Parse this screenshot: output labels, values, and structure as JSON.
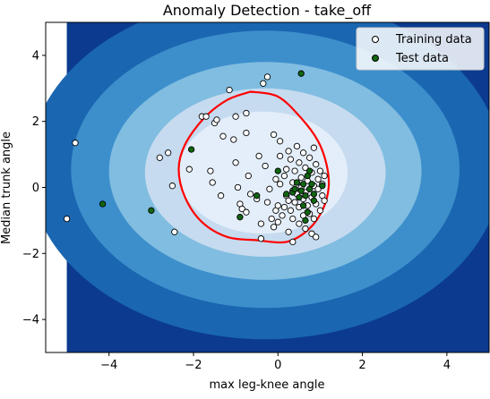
{
  "chart_data": {
    "type": "scatter",
    "title": "Anomaly Detection - take_off",
    "xlabel": "max leg-knee angle",
    "ylabel": "Median trunk angle",
    "xlim": [
      -5.5,
      5
    ],
    "ylim": [
      -5,
      5
    ],
    "xticks": [
      -4,
      -2,
      0,
      2,
      4
    ],
    "yticks": [
      -4,
      -2,
      0,
      2,
      4
    ],
    "tick_labels_x": [
      "−4",
      "−2",
      "0",
      "2",
      "4"
    ],
    "tick_labels_y": [
      "−4",
      "−2",
      "0",
      "2",
      "4"
    ],
    "grid": false,
    "legend": {
      "placement": "top-right",
      "entries": [
        "Training data",
        "Test data"
      ]
    },
    "background": {
      "description_of_fill": "filled contours of anomaly score, darkest blue at outside",
      "colors": [
        "#0b3a8f",
        "#1a66b0",
        "#3d8fcc",
        "#80bde0",
        "#c6dbef",
        "#e3eefa"
      ]
    },
    "decision_boundary": {
      "color": "#ff0000",
      "points": [
        [
          -0.65,
          2.9
        ],
        [
          0.0,
          2.75
        ],
        [
          0.55,
          2.1
        ],
        [
          0.95,
          1.4
        ],
        [
          1.15,
          0.7
        ],
        [
          1.2,
          0.0
        ],
        [
          1.05,
          -0.7
        ],
        [
          0.7,
          -1.3
        ],
        [
          0.2,
          -1.65
        ],
        [
          -0.5,
          -1.6
        ],
        [
          -1.2,
          -1.5
        ],
        [
          -1.8,
          -1.05
        ],
        [
          -2.2,
          -0.3
        ],
        [
          -2.35,
          0.55
        ],
        [
          -2.2,
          1.3
        ],
        [
          -1.75,
          2.1
        ],
        [
          -1.2,
          2.65
        ],
        [
          -0.65,
          2.9
        ]
      ]
    },
    "series": [
      {
        "name": "Training data",
        "marker_fill": "#ffffff",
        "marker_edge": "#000000",
        "points": [
          [
            -5.0,
            -0.95
          ],
          [
            -4.8,
            1.35
          ],
          [
            -2.8,
            0.9
          ],
          [
            -2.6,
            1.05
          ],
          [
            -2.5,
            0.05
          ],
          [
            -2.45,
            -1.35
          ],
          [
            -2.1,
            0.55
          ],
          [
            -1.8,
            2.15
          ],
          [
            -1.7,
            2.15
          ],
          [
            -1.6,
            0.5
          ],
          [
            -1.55,
            0.15
          ],
          [
            -1.5,
            1.95
          ],
          [
            -1.45,
            2.05
          ],
          [
            -1.35,
            -0.25
          ],
          [
            -1.3,
            1.55
          ],
          [
            -1.15,
            2.95
          ],
          [
            -1.05,
            1.45
          ],
          [
            -1.0,
            0.75
          ],
          [
            -1.0,
            2.15
          ],
          [
            -0.95,
            0.0
          ],
          [
            -0.9,
            -0.5
          ],
          [
            -0.85,
            -0.65
          ],
          [
            -0.75,
            2.25
          ],
          [
            -0.75,
            1.65
          ],
          [
            -0.75,
            -0.75
          ],
          [
            -0.7,
            0.35
          ],
          [
            -0.65,
            -0.2
          ],
          [
            -0.5,
            -0.35
          ],
          [
            -0.45,
            0.95
          ],
          [
            -0.4,
            -1.1
          ],
          [
            -0.4,
            -1.55
          ],
          [
            -0.35,
            3.15
          ],
          [
            -0.3,
            0.65
          ],
          [
            -0.25,
            3.35
          ],
          [
            -0.25,
            -0.45
          ],
          [
            -0.2,
            -0.05
          ],
          [
            -0.15,
            -0.95
          ],
          [
            -0.1,
            -1.2
          ],
          [
            -0.1,
            1.6
          ],
          [
            -0.05,
            0.25
          ],
          [
            -0.05,
            -0.7
          ],
          [
            0.0,
            -0.55
          ],
          [
            0.0,
            -1.05
          ],
          [
            0.05,
            1.4
          ],
          [
            0.05,
            0.95
          ],
          [
            0.05,
            0.1
          ],
          [
            0.1,
            -0.85
          ],
          [
            0.15,
            0.35
          ],
          [
            0.15,
            -0.6
          ],
          [
            0.2,
            0.55
          ],
          [
            0.2,
            -0.25
          ],
          [
            0.25,
            1.1
          ],
          [
            0.25,
            -0.4
          ],
          [
            0.25,
            -1.35
          ],
          [
            0.3,
            0.85
          ],
          [
            0.3,
            -0.7
          ],
          [
            0.35,
            0.15
          ],
          [
            0.35,
            -0.1
          ],
          [
            0.35,
            -0.95
          ],
          [
            0.35,
            -1.65
          ],
          [
            0.4,
            0.5
          ],
          [
            0.4,
            -0.45
          ],
          [
            0.45,
            1.25
          ],
          [
            0.45,
            -0.2
          ],
          [
            0.5,
            0.75
          ],
          [
            0.5,
            -0.6
          ],
          [
            0.5,
            -1.1
          ],
          [
            0.55,
            0.0
          ],
          [
            0.55,
            0.3
          ],
          [
            0.6,
            1.05
          ],
          [
            0.6,
            -0.35
          ],
          [
            0.6,
            -0.85
          ],
          [
            0.65,
            0.6
          ],
          [
            0.65,
            -0.15
          ],
          [
            0.65,
            -1.25
          ],
          [
            0.7,
            0.2
          ],
          [
            0.7,
            -0.55
          ],
          [
            0.75,
            0.9
          ],
          [
            0.75,
            -0.8
          ],
          [
            0.8,
            0.45
          ],
          [
            0.8,
            -0.3
          ],
          [
            0.8,
            -1.4
          ],
          [
            0.85,
            1.2
          ],
          [
            0.85,
            0.05
          ],
          [
            0.85,
            -0.95
          ],
          [
            0.9,
            0.7
          ],
          [
            0.9,
            -0.5
          ],
          [
            0.9,
            -1.5
          ],
          [
            0.95,
            0.25
          ],
          [
            0.95,
            -0.05
          ],
          [
            1.0,
            0.5
          ],
          [
            1.0,
            -0.7
          ],
          [
            1.05,
            0.1
          ],
          [
            1.05,
            -0.25
          ],
          [
            1.1,
            0.35
          ],
          [
            1.1,
            -0.4
          ]
        ]
      },
      {
        "name": "Test data",
        "marker_fill": "#116611",
        "marker_edge": "#000000",
        "points": [
          [
            -4.15,
            -0.5
          ],
          [
            -3.0,
            -0.7
          ],
          [
            -2.05,
            1.15
          ],
          [
            -0.9,
            -0.9
          ],
          [
            -0.5,
            -0.25
          ],
          [
            0.0,
            0.5
          ],
          [
            0.2,
            -0.2
          ],
          [
            0.35,
            -0.15
          ],
          [
            0.4,
            -0.05
          ],
          [
            0.45,
            0.15
          ],
          [
            0.5,
            -0.3
          ],
          [
            0.55,
            -0.1
          ],
          [
            0.55,
            3.45
          ],
          [
            0.6,
            0.1
          ],
          [
            0.6,
            -0.55
          ],
          [
            0.65,
            -0.25
          ],
          [
            0.65,
            -1.0
          ],
          [
            0.7,
            0.35
          ],
          [
            0.7,
            -0.75
          ],
          [
            0.75,
            -0.05
          ],
          [
            0.75,
            0.5
          ],
          [
            0.8,
            0.1
          ],
          [
            0.85,
            -0.4
          ],
          [
            0.85,
            -0.2
          ],
          [
            1.05,
            0.05
          ]
        ]
      }
    ]
  }
}
